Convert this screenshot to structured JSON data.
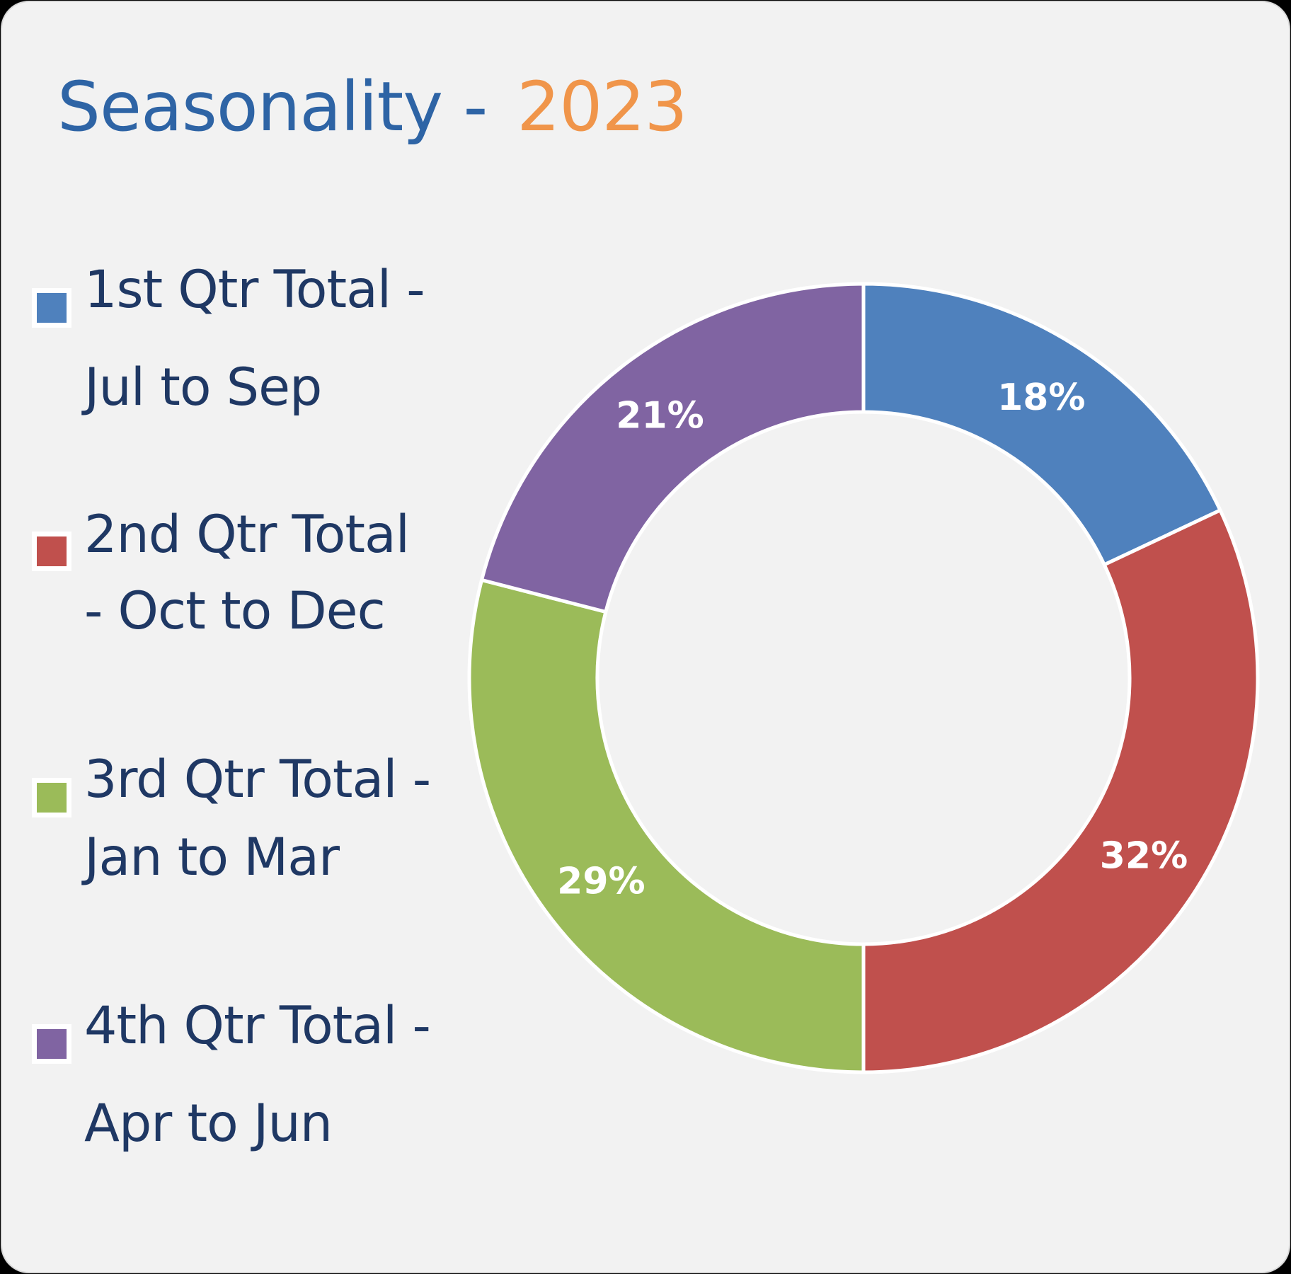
{
  "title": {
    "main": "Seasonality -",
    "year": "2023"
  },
  "colors": {
    "background": "#f2f2f2",
    "title_main": "#2e64a5",
    "title_year": "#f0954a",
    "legend_text": "#1f3864"
  },
  "legend": [
    {
      "line1": "1st Qtr Total -",
      "line2": "Jul to Sep",
      "color": "#4f81bd"
    },
    {
      "line1": "2nd Qtr Total",
      "line2": "- Oct to Dec",
      "color": "#c0504d"
    },
    {
      "line1": "3rd Qtr Total -",
      "line2": "Jan to Mar",
      "color": "#9bbb59"
    },
    {
      "line1": "4th Qtr Total -",
      "line2": "Apr to Jun",
      "color": "#8064a2"
    }
  ],
  "chart_data": {
    "type": "pie",
    "title": "Seasonality - 2023",
    "legend_position": "left",
    "categories": [
      "1st Qtr Total - Jul to Sep",
      "2nd Qtr Total - Oct to Dec",
      "3rd Qtr Total - Jan to Mar",
      "4th Qtr Total - Apr to Jun"
    ],
    "values": [
      18,
      32,
      29,
      21
    ],
    "labels": [
      "18%",
      "32%",
      "29%",
      "21%"
    ],
    "colors": [
      "#4f81bd",
      "#c0504d",
      "#9bbb59",
      "#8064a2"
    ]
  }
}
